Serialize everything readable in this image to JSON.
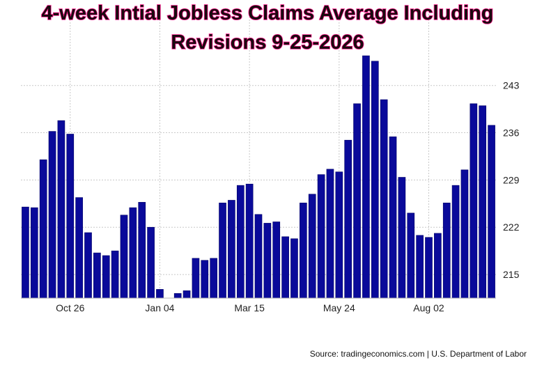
{
  "chart_data": {
    "type": "bar",
    "title_lines": [
      "4-week Intial Jobless Claims Average Including",
      "Revisions 9-25-2026"
    ],
    "source": "Source: tradingeconomics.com | U.S. Department of Labor",
    "x_tick_labels": [
      {
        "label": "Oct 26",
        "index": 5
      },
      {
        "label": "Jan 04",
        "index": 15
      },
      {
        "label": "Mar 15",
        "index": 25
      },
      {
        "label": "May 24",
        "index": 35
      },
      {
        "label": "Aug 02",
        "index": 45
      }
    ],
    "y_ticks": [
      215,
      222,
      229,
      236,
      243
    ],
    "ylim": [
      211.5,
      250.5
    ],
    "grid": true,
    "y_axis_side": "right",
    "bar_color": "#0a0a9a",
    "values": [
      225.0,
      224.9,
      232.0,
      236.2,
      237.8,
      235.8,
      226.4,
      221.2,
      218.2,
      217.8,
      218.5,
      223.8,
      224.9,
      225.7,
      222.0,
      212.8,
      211.4,
      212.2,
      212.6,
      217.4,
      217.1,
      217.4,
      225.6,
      226.0,
      228.2,
      228.4,
      223.9,
      222.6,
      222.8,
      220.6,
      220.3,
      225.6,
      226.9,
      229.8,
      230.6,
      230.2,
      234.9,
      240.3,
      247.4,
      246.6,
      240.9,
      235.4,
      229.4,
      224.1,
      220.8,
      220.5,
      221.1,
      225.6,
      228.2,
      230.5,
      240.3,
      240.0,
      237.1
    ]
  }
}
